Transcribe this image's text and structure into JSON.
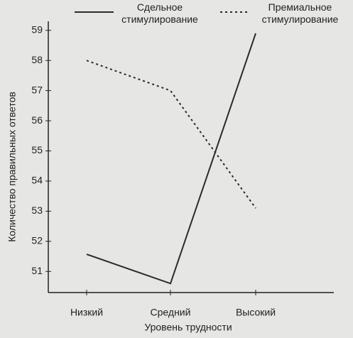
{
  "chart_data": {
    "type": "line",
    "x_label": "Уровень трудности",
    "y_label": "Количество правильных ответов",
    "categories": [
      "Низкий",
      "Средний",
      "Высокий"
    ],
    "series": [
      {
        "name": "Сдельное стимулирование",
        "color": "#2a2a2a",
        "style": "solid",
        "values": [
          51.57,
          50.6,
          58.9
        ]
      },
      {
        "name": "Премиальное стимулирование",
        "color": "#2a2a2a",
        "style": "dotted",
        "values": [
          58,
          57,
          53.1
        ]
      }
    ],
    "ylim": [
      50.3,
      59.3
    ],
    "yticks": [
      51,
      52,
      53,
      54,
      55,
      56,
      57,
      58,
      59
    ],
    "grid": false
  }
}
